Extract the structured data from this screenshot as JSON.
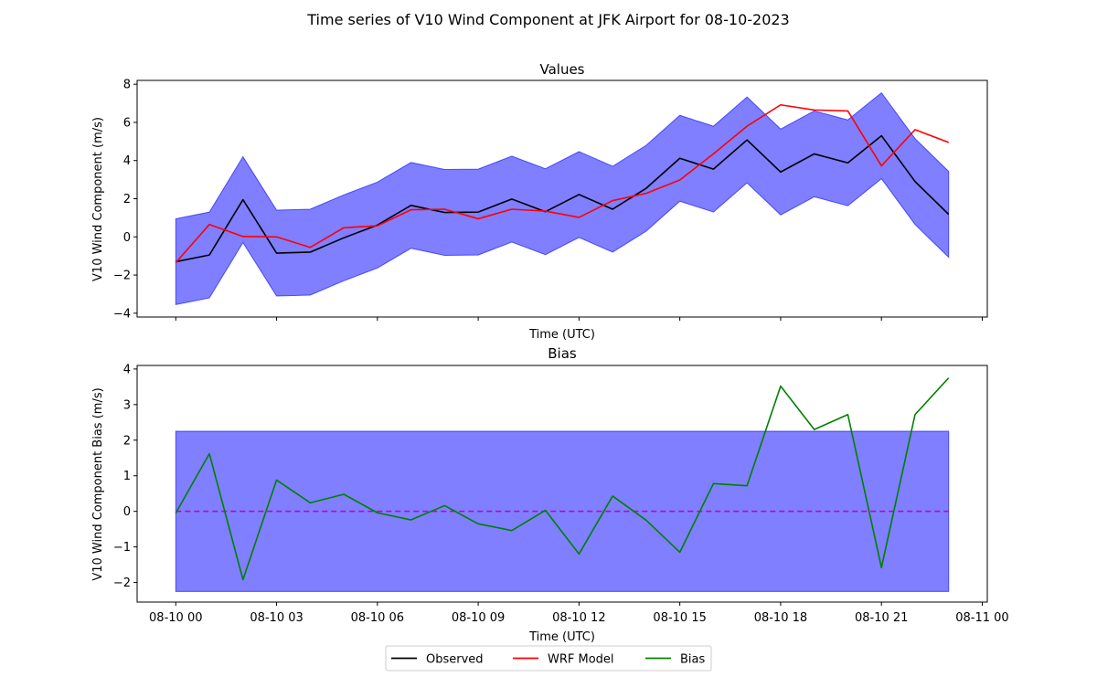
{
  "figure_title": "Time series of V10 Wind Component at JFK Airport for 08-10-2023",
  "colors": {
    "observed": "#000000",
    "wrf_model": "#ff0000",
    "bias": "#008000",
    "band": "#0000ff",
    "zero_line": "#bf00bf"
  },
  "chart_data": [
    {
      "type": "line",
      "title": "Values",
      "xlabel": "Time (UTC)",
      "ylabel": "V10 Wind Component (m/s)",
      "x": [
        "08-10 00",
        "08-10 01",
        "08-10 02",
        "08-10 03",
        "08-10 04",
        "08-10 05",
        "08-10 06",
        "08-10 07",
        "08-10 08",
        "08-10 09",
        "08-10 10",
        "08-10 11",
        "08-10 12",
        "08-10 13",
        "08-10 14",
        "08-10 15",
        "08-10 16",
        "08-10 17",
        "08-10 18",
        "08-10 19",
        "08-10 20",
        "08-10 21",
        "08-10 22",
        "08-10 23"
      ],
      "xlim": [
        -1.15,
        24.15
      ],
      "ylim": [
        -4.2,
        8.2
      ],
      "yticks": [
        -4,
        -2,
        0,
        2,
        4,
        6,
        8
      ],
      "xticks": [
        {
          "x": 0,
          "label": ""
        },
        {
          "x": 3,
          "label": ""
        },
        {
          "x": 6,
          "label": ""
        },
        {
          "x": 9,
          "label": ""
        },
        {
          "x": 12,
          "label": ""
        },
        {
          "x": 15,
          "label": ""
        },
        {
          "x": 18,
          "label": ""
        },
        {
          "x": 21,
          "label": ""
        },
        {
          "x": 24,
          "label": ""
        }
      ],
      "series": [
        {
          "name": "Observed",
          "color_key": "observed",
          "values": [
            -1.3,
            -0.95,
            1.95,
            -0.85,
            -0.8,
            -0.05,
            0.62,
            1.65,
            1.28,
            1.3,
            1.98,
            1.32,
            2.22,
            1.45,
            2.55,
            4.12,
            3.55,
            5.08,
            3.4,
            4.35,
            3.88,
            5.3,
            2.9,
            1.18
          ]
        },
        {
          "name": "WRF Model",
          "color_key": "wrf_model",
          "values": [
            -1.35,
            0.65,
            0.02,
            0.0,
            -0.55,
            0.48,
            0.58,
            1.42,
            1.45,
            0.95,
            1.45,
            1.35,
            1.02,
            1.9,
            2.28,
            2.98,
            4.35,
            5.8,
            6.92,
            6.65,
            6.6,
            3.72,
            5.62,
            4.95
          ]
        }
      ],
      "band": {
        "lower_offset": -2.25,
        "upper_offset": 2.25,
        "around_series": "Observed"
      }
    },
    {
      "type": "line",
      "title": "Bias",
      "xlabel": "Time (UTC)",
      "ylabel": "V10 Wind Component Bias (m/s)",
      "xlim": [
        -1.15,
        24.15
      ],
      "ylim": [
        -2.55,
        4.1
      ],
      "yticks": [
        -2,
        -1,
        0,
        1,
        2,
        3,
        4
      ],
      "xticks": [
        {
          "x": 0,
          "label": "08-10 00"
        },
        {
          "x": 3,
          "label": "08-10 03"
        },
        {
          "x": 6,
          "label": "08-10 06"
        },
        {
          "x": 9,
          "label": "08-10 09"
        },
        {
          "x": 12,
          "label": "08-10 12"
        },
        {
          "x": 15,
          "label": "08-10 15"
        },
        {
          "x": 18,
          "label": "08-10 18"
        },
        {
          "x": 21,
          "label": "08-10 21"
        },
        {
          "x": 24,
          "label": "08-11 00"
        }
      ],
      "series": [
        {
          "name": "Bias",
          "color_key": "bias",
          "values": [
            -0.05,
            1.62,
            -1.92,
            0.88,
            0.24,
            0.48,
            -0.04,
            -0.24,
            0.16,
            -0.35,
            -0.54,
            0.03,
            -1.2,
            0.43,
            -0.25,
            -1.15,
            0.78,
            0.72,
            3.52,
            2.3,
            2.72,
            -1.58,
            2.72,
            3.75
          ]
        }
      ],
      "band": {
        "lower": -2.25,
        "upper": 2.25,
        "x_from": 0,
        "x_to": 23
      },
      "reference_line": {
        "y": 0
      }
    }
  ],
  "legend": {
    "placement": "bottom-center",
    "entries": [
      {
        "label": "Observed",
        "color_key": "observed"
      },
      {
        "label": "WRF Model",
        "color_key": "wrf_model"
      },
      {
        "label": "Bias",
        "color_key": "bias"
      }
    ]
  }
}
